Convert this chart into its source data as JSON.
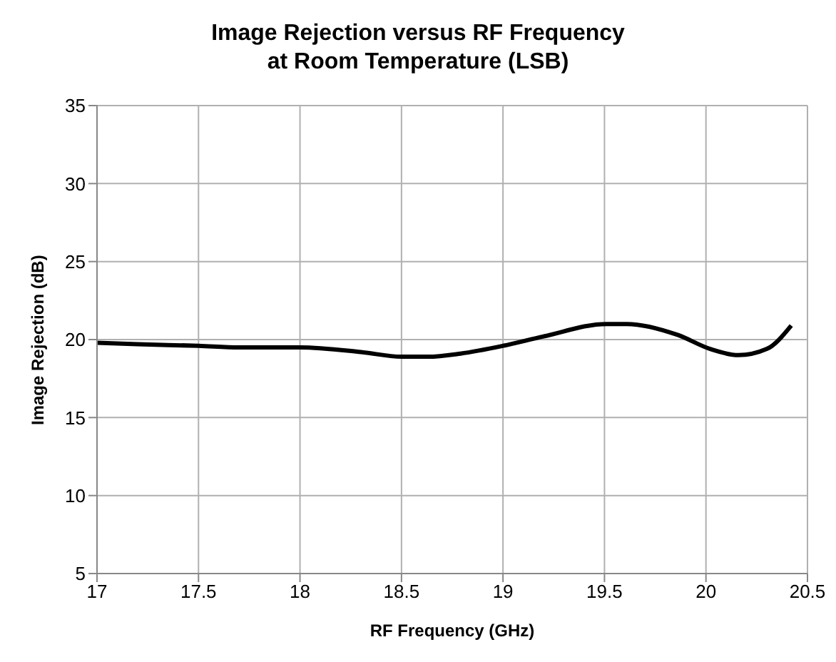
{
  "chart_data": {
    "type": "line",
    "title": "Image Rejection versus RF Frequency\nat Room Temperature (LSB)",
    "xlabel": "RF Frequency (GHz)",
    "ylabel": "Image Rejection (dB)",
    "x": [
      17.0,
      17.2,
      17.5,
      17.7,
      18.0,
      18.3,
      18.5,
      18.63,
      18.79,
      19.0,
      19.2,
      19.51,
      19.61,
      19.86,
      20.02,
      20.16,
      20.3,
      20.42
    ],
    "series": [
      {
        "color": "#000000",
        "values": [
          19.8,
          19.7,
          19.6,
          19.5,
          19.5,
          19.2,
          18.9,
          18.9,
          19.1,
          19.6,
          20.2,
          21.0,
          21.0,
          20.3,
          19.4,
          19.0,
          19.4,
          20.9
        ]
      }
    ],
    "xlim": [
      17,
      20.5
    ],
    "xticks": [
      17,
      17.5,
      18,
      18.5,
      19,
      19.5,
      20,
      20.5
    ],
    "ylim": [
      5,
      35
    ],
    "yticks": [
      5,
      10,
      15,
      20,
      25,
      30,
      35
    ],
    "grid": true,
    "legend": false,
    "marker": "none",
    "line_style": "solid"
  }
}
